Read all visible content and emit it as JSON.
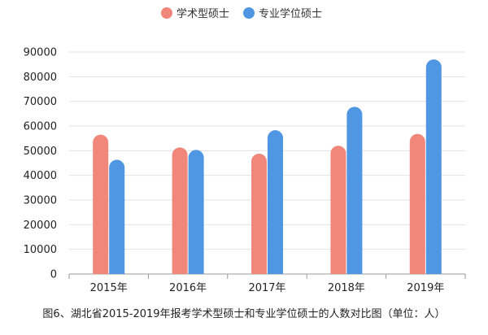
{
  "chart_data": {
    "type": "bar",
    "categories": [
      "2015年",
      "2016年",
      "2017年",
      "2018年",
      "2019年"
    ],
    "series": [
      {
        "name": "学术型硕士",
        "color": "#f0877a",
        "values": [
          56500,
          51300,
          48800,
          52000,
          56800
        ]
      },
      {
        "name": "专业学位硕士",
        "color": "#4f96e3",
        "values": [
          46300,
          50300,
          58300,
          67800,
          87000
        ]
      }
    ],
    "ylim": [
      0,
      90000
    ],
    "yticks": [
      0,
      10000,
      20000,
      30000,
      40000,
      50000,
      60000,
      70000,
      80000,
      90000
    ],
    "grid": true,
    "legend_position": "top-center",
    "caption": "图6、湖北省2015-2019年报考学术型硕士和专业学位硕士的人数对比图（单位：人）"
  }
}
